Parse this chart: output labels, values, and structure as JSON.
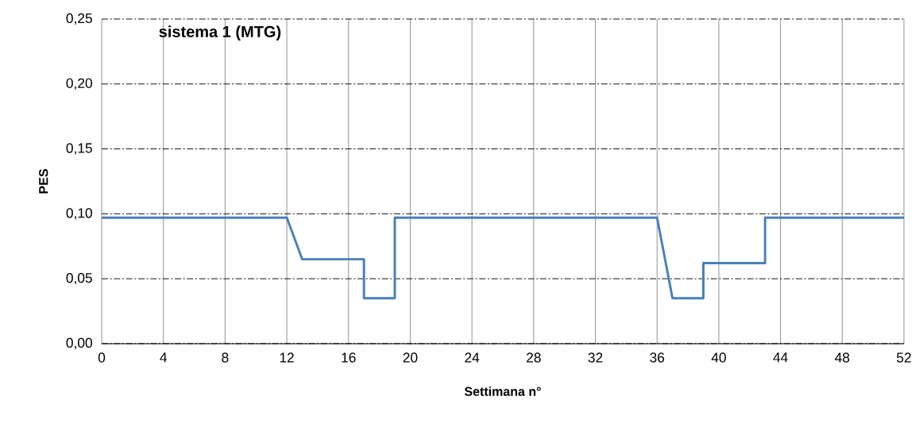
{
  "chart_data": {
    "type": "line",
    "title": "sistema 1 (MTG)",
    "xlabel": "Settimana n°",
    "ylabel": "PES",
    "series": [
      {
        "color": "#4a7ebb",
        "x": [
          0,
          12,
          13,
          17,
          17,
          19,
          19,
          36,
          37,
          39,
          39,
          43,
          43,
          52
        ],
        "values": [
          0.097,
          0.097,
          0.065,
          0.065,
          0.035,
          0.035,
          0.097,
          0.097,
          0.035,
          0.035,
          0.062,
          0.062,
          0.097,
          0.097
        ]
      }
    ],
    "xlim": [
      0,
      52
    ],
    "xticks": [
      0,
      4,
      8,
      12,
      16,
      20,
      24,
      28,
      32,
      36,
      40,
      44,
      48,
      52
    ],
    "ylim": [
      0,
      0.25
    ],
    "yticks": [
      {
        "value": 0,
        "label": "0,00"
      },
      {
        "value": 0.05,
        "label": "0,05"
      },
      {
        "value": 0.1,
        "label": "0,10"
      },
      {
        "value": 0.15,
        "label": "0,15"
      },
      {
        "value": 0.2,
        "label": "0,20"
      },
      {
        "value": 0.25,
        "label": "0,25"
      }
    ],
    "grid": true,
    "marker": "none",
    "line_style": "solid"
  }
}
